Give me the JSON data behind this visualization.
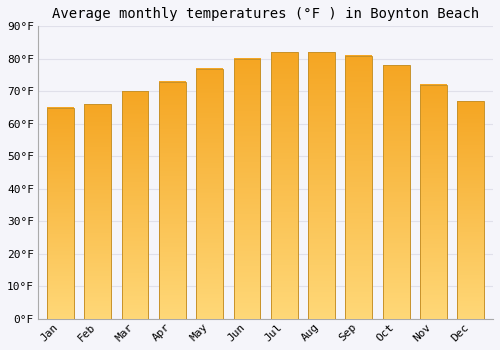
{
  "title": "Average monthly temperatures (°F ) in Boynton Beach",
  "months": [
    "Jan",
    "Feb",
    "Mar",
    "Apr",
    "May",
    "Jun",
    "Jul",
    "Aug",
    "Sep",
    "Oct",
    "Nov",
    "Dec"
  ],
  "values": [
    65,
    66,
    70,
    73,
    77,
    80,
    82,
    82,
    81,
    78,
    72,
    67
  ],
  "bar_color_top": "#F5A623",
  "bar_color_bottom": "#FFD878",
  "bar_edge_color": "#C8922A",
  "ylim": [
    0,
    90
  ],
  "yticks": [
    0,
    10,
    20,
    30,
    40,
    50,
    60,
    70,
    80,
    90
  ],
  "ytick_labels": [
    "0°F",
    "10°F",
    "20°F",
    "30°F",
    "40°F",
    "50°F",
    "60°F",
    "70°F",
    "80°F",
    "90°F"
  ],
  "background_color": "#f5f5fa",
  "plot_bg_color": "#f5f5fa",
  "grid_color": "#e0e0ea",
  "title_fontsize": 10,
  "tick_fontsize": 8,
  "font_family": "monospace"
}
